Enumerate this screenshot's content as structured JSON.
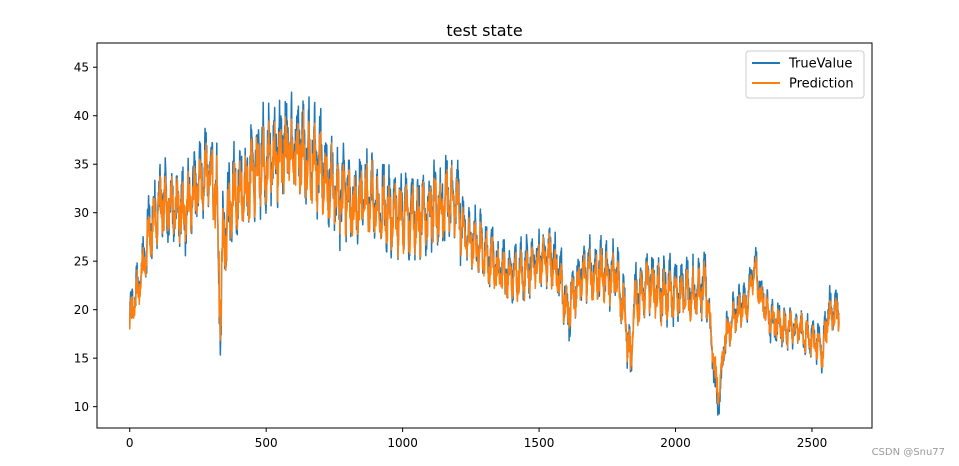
{
  "chart_data": {
    "type": "line",
    "title": "test state",
    "xlabel": "",
    "ylabel": "",
    "xlim": [
      -120,
      2720
    ],
    "ylim": [
      7.8,
      47.5
    ],
    "x_ticks": [
      0,
      500,
      1000,
      1500,
      2000,
      2500
    ],
    "y_ticks": [
      10,
      15,
      20,
      25,
      30,
      35,
      40,
      45
    ],
    "x_tick_labels": [
      "0",
      "500",
      "1000",
      "1500",
      "2000",
      "2500"
    ],
    "y_tick_labels": [
      "10",
      "15",
      "20",
      "25",
      "30",
      "35",
      "40",
      "45"
    ],
    "grid": false,
    "legend_position": "top-right",
    "n_points": 2600,
    "series": [
      {
        "name": "TrueValue",
        "color": "#1f77b4",
        "baseline": [
          [
            0,
            19
          ],
          [
            25,
            22
          ],
          [
            50,
            25
          ],
          [
            80,
            29
          ],
          [
            110,
            31
          ],
          [
            150,
            31
          ],
          [
            200,
            30
          ],
          [
            250,
            33
          ],
          [
            290,
            35
          ],
          [
            320,
            31
          ],
          [
            333,
            18
          ],
          [
            340,
            27
          ],
          [
            380,
            32
          ],
          [
            420,
            33
          ],
          [
            480,
            35
          ],
          [
            550,
            37
          ],
          [
            620,
            37
          ],
          [
            680,
            36
          ],
          [
            720,
            34
          ],
          [
            770,
            32
          ],
          [
            820,
            31
          ],
          [
            880,
            32
          ],
          [
            950,
            30
          ],
          [
            1000,
            30
          ],
          [
            1060,
            30
          ],
          [
            1110,
            31
          ],
          [
            1160,
            31
          ],
          [
            1200,
            31
          ],
          [
            1230,
            28
          ],
          [
            1280,
            27
          ],
          [
            1330,
            25
          ],
          [
            1380,
            24
          ],
          [
            1430,
            24
          ],
          [
            1480,
            25
          ],
          [
            1530,
            26
          ],
          [
            1570,
            24
          ],
          [
            1605,
            20
          ],
          [
            1620,
            21
          ],
          [
            1660,
            24
          ],
          [
            1720,
            24
          ],
          [
            1780,
            24
          ],
          [
            1810,
            21
          ],
          [
            1835,
            14
          ],
          [
            1850,
            21
          ],
          [
            1900,
            23
          ],
          [
            1950,
            22
          ],
          [
            2000,
            22
          ],
          [
            2080,
            22
          ],
          [
            2110,
            23
          ],
          [
            2135,
            16
          ],
          [
            2150,
            11
          ],
          [
            2165,
            11
          ],
          [
            2180,
            17
          ],
          [
            2220,
            20
          ],
          [
            2260,
            21
          ],
          [
            2290,
            25
          ],
          [
            2310,
            22
          ],
          [
            2350,
            19
          ],
          [
            2400,
            18
          ],
          [
            2450,
            18
          ],
          [
            2500,
            17
          ],
          [
            2540,
            16
          ],
          [
            2560,
            20
          ],
          [
            2599,
            20
          ]
        ]
      },
      {
        "name": "Prediction",
        "color": "#ff7f0e",
        "baseline": [
          [
            0,
            18.5
          ],
          [
            25,
            21.5
          ],
          [
            50,
            24.5
          ],
          [
            80,
            28.5
          ],
          [
            110,
            30.5
          ],
          [
            150,
            31
          ],
          [
            200,
            30
          ],
          [
            250,
            32.5
          ],
          [
            290,
            34.5
          ],
          [
            320,
            31
          ],
          [
            333,
            19
          ],
          [
            340,
            26.5
          ],
          [
            380,
            31.5
          ],
          [
            420,
            32.5
          ],
          [
            480,
            34.5
          ],
          [
            550,
            36
          ],
          [
            620,
            36
          ],
          [
            680,
            35
          ],
          [
            720,
            33.5
          ],
          [
            770,
            31.5
          ],
          [
            820,
            30.5
          ],
          [
            880,
            31.5
          ],
          [
            950,
            29.5
          ],
          [
            1000,
            29.5
          ],
          [
            1060,
            29.5
          ],
          [
            1110,
            30.5
          ],
          [
            1160,
            31
          ],
          [
            1200,
            30.5
          ],
          [
            1230,
            27.5
          ],
          [
            1280,
            26.5
          ],
          [
            1330,
            24.5
          ],
          [
            1380,
            23.5
          ],
          [
            1430,
            23.5
          ],
          [
            1480,
            24.5
          ],
          [
            1530,
            25.5
          ],
          [
            1570,
            23.5
          ],
          [
            1605,
            20
          ],
          [
            1620,
            21
          ],
          [
            1660,
            23.5
          ],
          [
            1720,
            23.5
          ],
          [
            1780,
            23.5
          ],
          [
            1810,
            20.5
          ],
          [
            1835,
            14.5
          ],
          [
            1850,
            20.5
          ],
          [
            1900,
            22.5
          ],
          [
            1950,
            21.5
          ],
          [
            2000,
            21.5
          ],
          [
            2080,
            21.5
          ],
          [
            2110,
            22.5
          ],
          [
            2135,
            16.5
          ],
          [
            2150,
            12
          ],
          [
            2165,
            12
          ],
          [
            2180,
            17
          ],
          [
            2220,
            19.5
          ],
          [
            2260,
            20.5
          ],
          [
            2290,
            24.5
          ],
          [
            2310,
            21.5
          ],
          [
            2350,
            19
          ],
          [
            2400,
            18
          ],
          [
            2450,
            18
          ],
          [
            2500,
            17
          ],
          [
            2540,
            15.5
          ],
          [
            2560,
            19.5
          ],
          [
            2599,
            19.5
          ]
        ]
      }
    ]
  },
  "watermark": "CSDN @Snu77"
}
